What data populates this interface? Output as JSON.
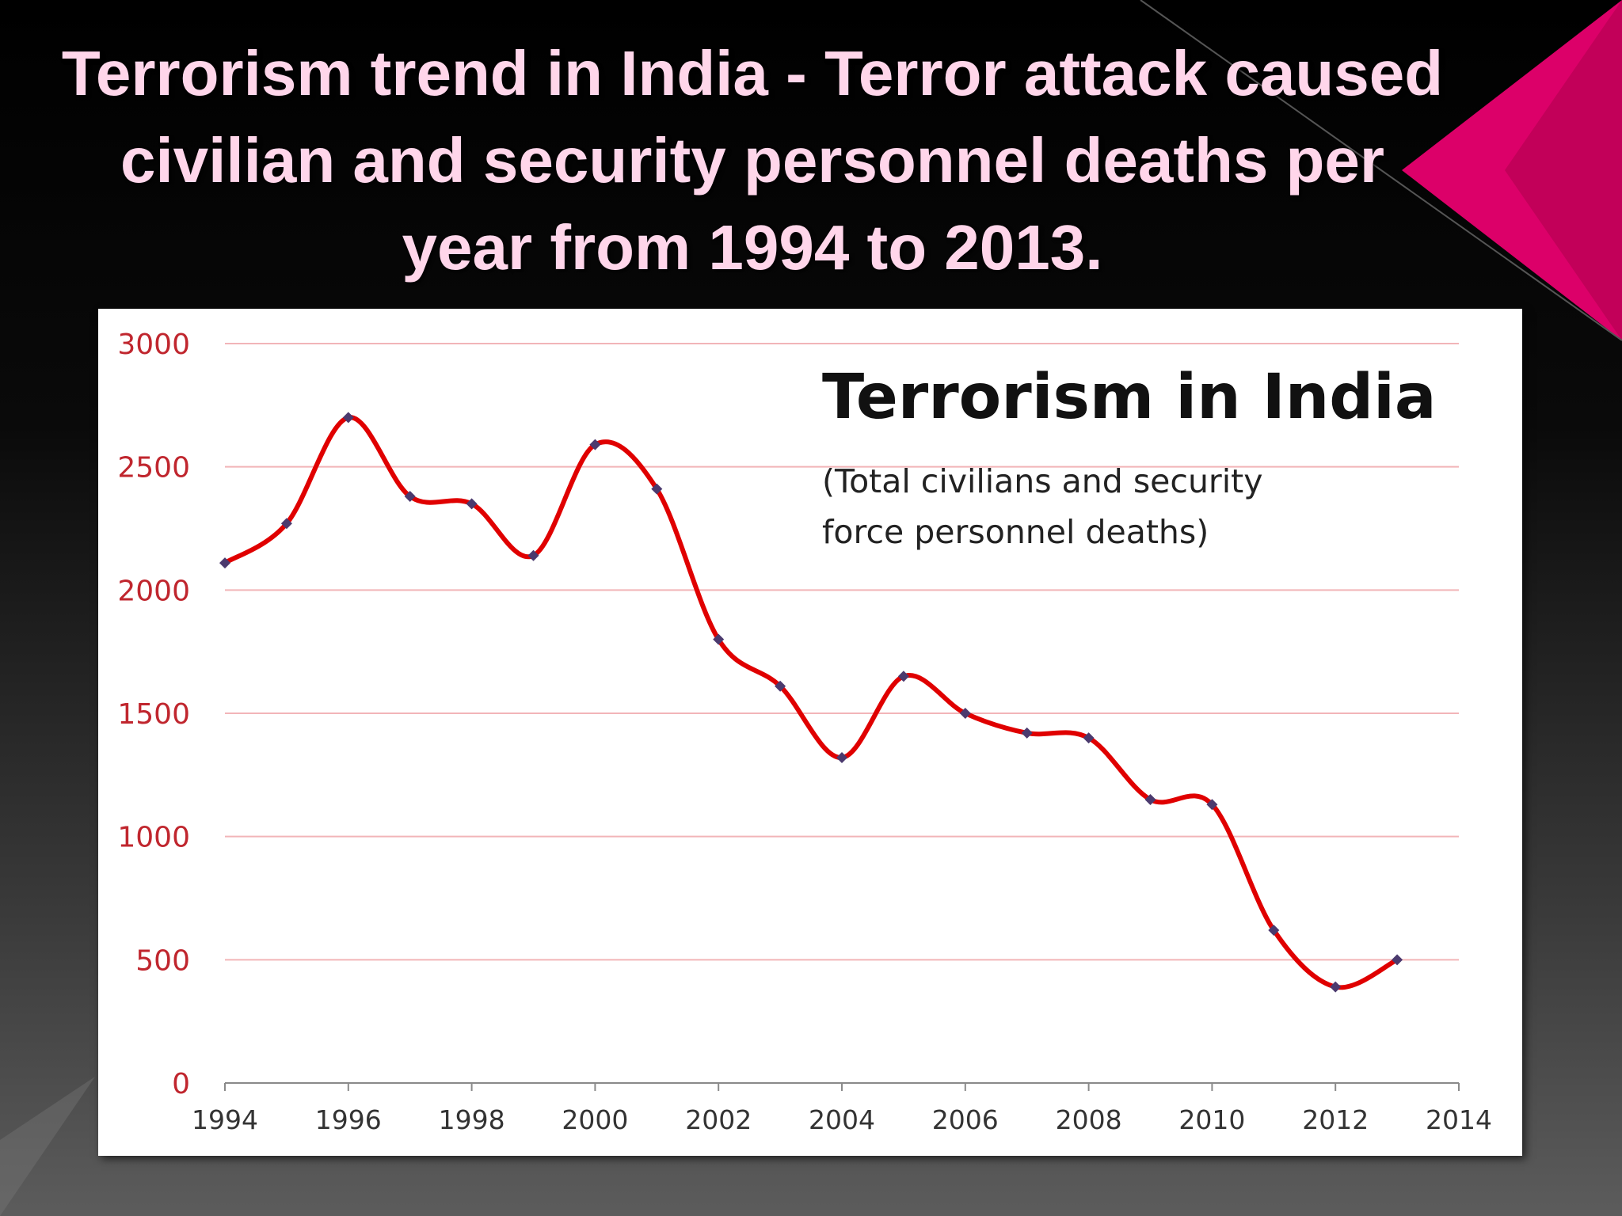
{
  "slide": {
    "title": "Terrorism trend in India - Terror attack caused civilian and security personnel deaths per year from 1994 to 2013.",
    "accent_color": "#e8006f",
    "title_color": "#ffd6ea"
  },
  "chart_data": {
    "type": "line",
    "title": "Terrorism in India",
    "subtitle_lines": [
      "(Total civilians and security",
      "force personnel deaths)"
    ],
    "xlabel": "",
    "ylabel": "",
    "x": [
      1994,
      1995,
      1996,
      1997,
      1998,
      1999,
      2000,
      2001,
      2002,
      2003,
      2004,
      2005,
      2006,
      2007,
      2008,
      2009,
      2010,
      2011,
      2012,
      2013
    ],
    "series": [
      {
        "values": [
          2110,
          2270,
          2700,
          2380,
          2350,
          2140,
          2590,
          2410,
          1800,
          1610,
          1320,
          1650,
          1500,
          1420,
          1400,
          1150,
          1130,
          620,
          390,
          500
        ],
        "line_color": "#e00000",
        "marker_color": "#4b3a6e",
        "smooth": true
      }
    ],
    "xlim": [
      1994,
      2014
    ],
    "ylim": [
      0,
      3000
    ],
    "xticks": [
      1994,
      1996,
      1998,
      2000,
      2002,
      2004,
      2006,
      2008,
      2010,
      2012,
      2014
    ],
    "yticks": [
      0,
      500,
      1000,
      1500,
      2000,
      2500,
      3000
    ],
    "grid": true,
    "grid_color": "#f2b5b8",
    "ytick_color": "#c0262e",
    "legend": "none"
  }
}
